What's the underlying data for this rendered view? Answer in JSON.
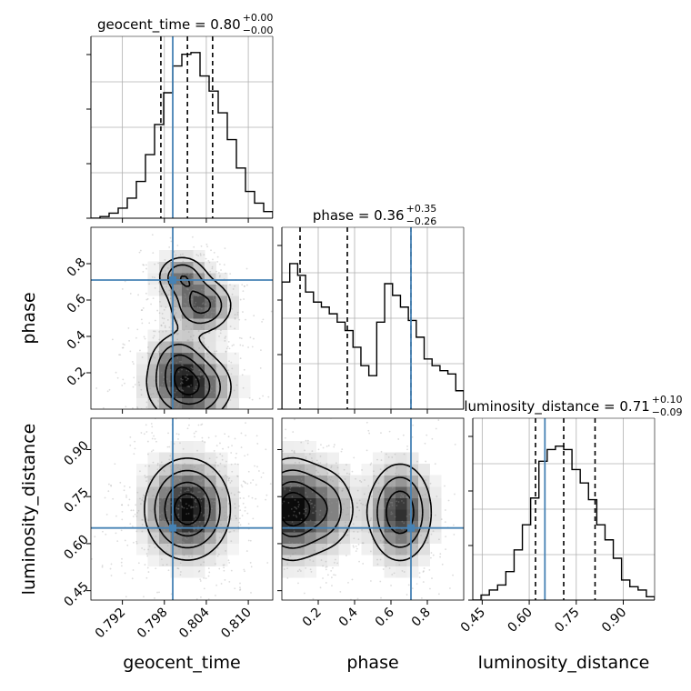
{
  "chart_data": {
    "type": "corner",
    "truth_color": "#4682b4",
    "hist_color": "#000000",
    "parameters": [
      {
        "name": "geocent_time",
        "label": "geocent_time",
        "range": [
          0.7875,
          0.8135
        ],
        "ticks": [
          "0.792",
          "0.798",
          "0.804",
          "0.810"
        ],
        "truth": 0.7992,
        "quantiles": [
          0.7975,
          0.8013,
          0.8049
        ]
      },
      {
        "name": "phase",
        "label": "phase",
        "range": [
          0.0,
          1.0
        ],
        "ticks": [
          "0.2",
          "0.4",
          "0.6",
          "0.8"
        ],
        "truth": 0.71,
        "quantiles": [
          0.1,
          0.36,
          0.71
        ]
      },
      {
        "name": "luminosity_distance",
        "label": "luminosity_distance",
        "range": [
          0.42,
          1.0
        ],
        "ticks": [
          "0.45",
          "0.60",
          "0.75",
          "0.90"
        ],
        "truth": 0.65,
        "quantiles": [
          0.62,
          0.71,
          0.81
        ]
      }
    ],
    "titles": {
      "geocent_time": {
        "main": "geocent_time = 0.80",
        "plus": "+0.00",
        "minus": "−0.00"
      },
      "phase": {
        "main": "phase = 0.36",
        "plus": "+0.35",
        "minus": "−0.26"
      },
      "luminosity_distance": {
        "main": "luminosity_distance = 0.71",
        "plus": "+0.10",
        "minus": "−0.09"
      }
    },
    "histograms": {
      "geocent_time": [
        0.0,
        0.01,
        0.03,
        0.06,
        0.12,
        0.22,
        0.38,
        0.56,
        0.75,
        0.91,
        0.98,
        0.99,
        0.85,
        0.76,
        0.63,
        0.47,
        0.3,
        0.16,
        0.09,
        0.04
      ],
      "phase": [
        0.76,
        0.87,
        0.8,
        0.7,
        0.64,
        0.61,
        0.57,
        0.52,
        0.47,
        0.37,
        0.26,
        0.2,
        0.52,
        0.75,
        0.68,
        0.61,
        0.53,
        0.43,
        0.3,
        0.26,
        0.23,
        0.21,
        0.11
      ],
      "luminosity_distance": [
        0.0,
        0.03,
        0.06,
        0.09,
        0.17,
        0.3,
        0.45,
        0.61,
        0.83,
        0.9,
        0.92,
        0.9,
        0.78,
        0.7,
        0.6,
        0.45,
        0.36,
        0.25,
        0.12,
        0.08,
        0.06,
        0.02
      ]
    },
    "contours": {
      "phase_vs_geocent_time": [
        {
          "x": 0.8033,
          "y": 0.57,
          "sx": 0.0026,
          "sy": 0.085,
          "w": 1.0
        },
        {
          "x": 0.8005,
          "y": 0.73,
          "sx": 0.0021,
          "sy": 0.07,
          "w": 0.8
        },
        {
          "x": 0.8016,
          "y": 0.12,
          "sx": 0.0034,
          "sy": 0.11,
          "w": 1.25
        },
        {
          "x": 0.7998,
          "y": 0.28,
          "sx": 0.0023,
          "sy": 0.09,
          "w": 0.6
        }
      ],
      "luminosity_distance_vs_geocent_time": [
        {
          "x": 0.8013,
          "y": 0.71,
          "sx": 0.0034,
          "sy": 0.09,
          "w": 1.0
        }
      ],
      "luminosity_distance_vs_phase": [
        {
          "x": 0.05,
          "y": 0.71,
          "sx": 0.11,
          "sy": 0.09,
          "w": 1.0
        },
        {
          "x": 0.26,
          "y": 0.71,
          "sx": 0.09,
          "sy": 0.08,
          "w": 0.45
        },
        {
          "x": 0.65,
          "y": 0.7,
          "sx": 0.1,
          "sy": 0.09,
          "w": 0.85
        }
      ]
    },
    "contour_levels": [
      0.2,
      0.4,
      0.65,
      0.88
    ],
    "grid": true
  }
}
